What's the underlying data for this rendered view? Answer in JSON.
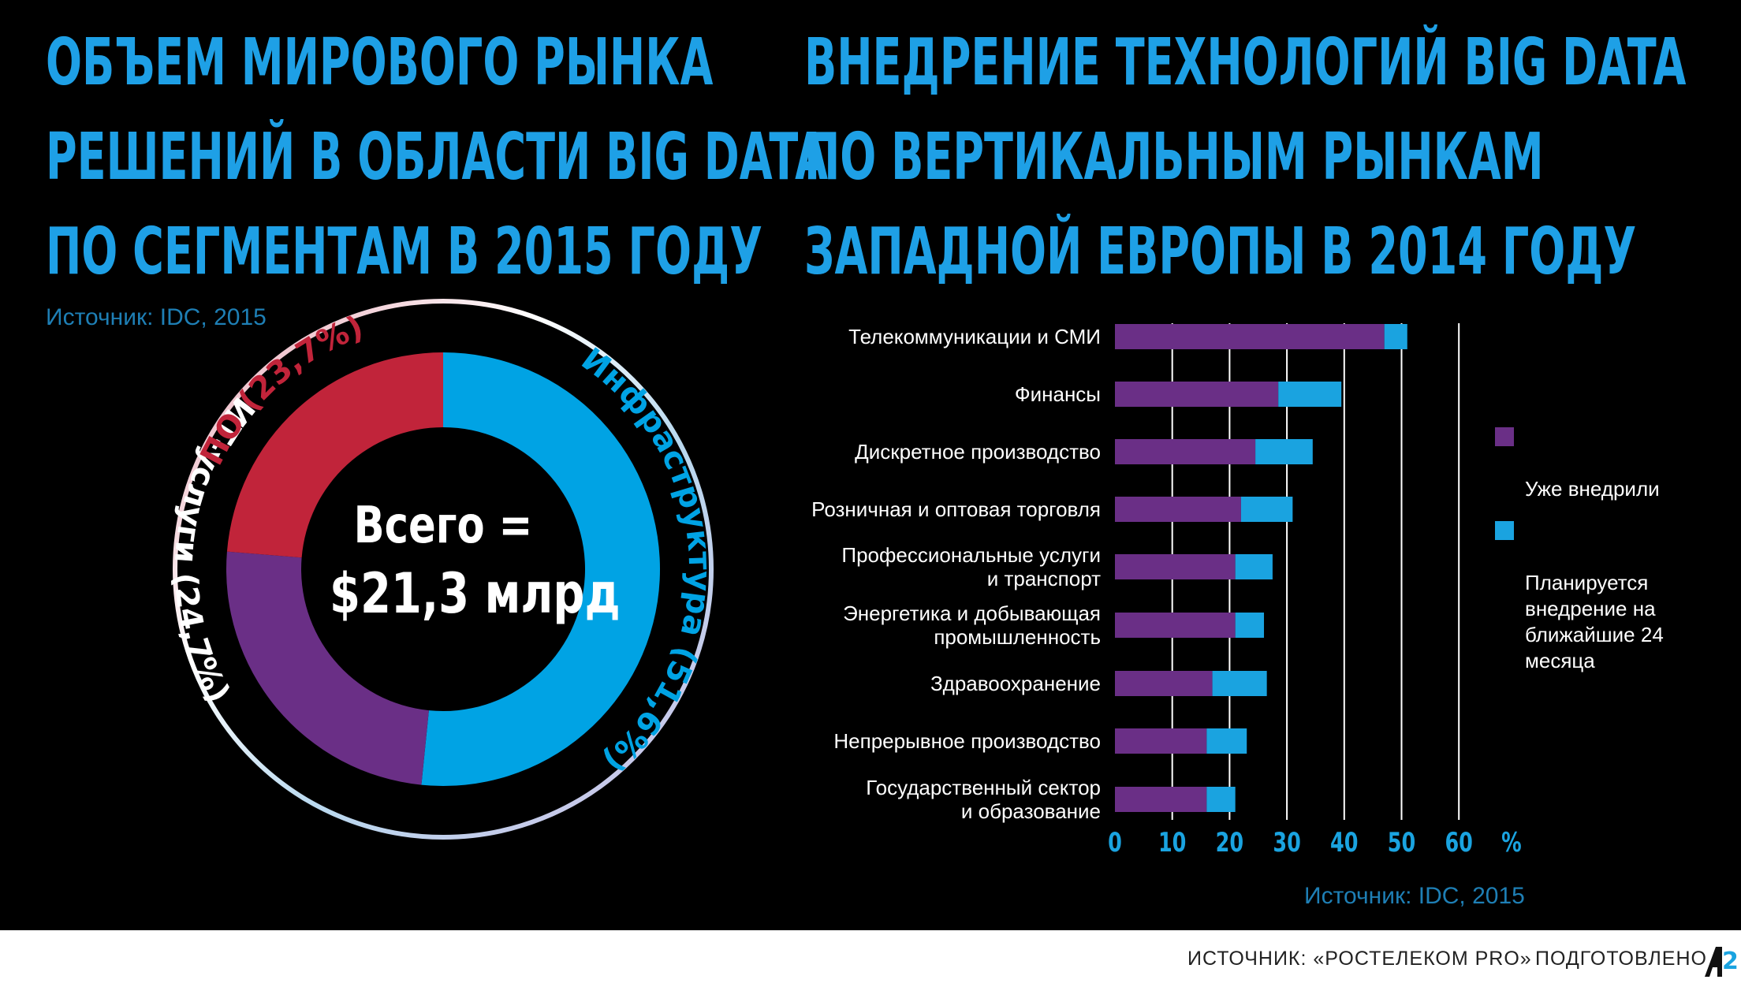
{
  "left_title": [
    "ОБЪЕМ МИРОВОГО РЫНКА",
    "РЕШЕНИЙ В ОБЛАСТИ BIG DATA",
    "ПО СЕГМЕНТАМ В 2015 ГОДУ"
  ],
  "right_title": [
    "ВНЕДРЕНИЕ ТЕХНОЛОГИЙ BIG DATA",
    "ПО ВЕРТИКАЛЬНЫМ РЫНКАМ",
    "ЗАПАДНОЙ ЕВРОПЫ В 2014 ГОДУ"
  ],
  "left_source": "Источник: IDC, 2015",
  "right_source": "Источник: IDC, 2015",
  "donut_center": [
    "Всего =",
    "$21,3 млрд"
  ],
  "footer_source": "ИСТОЧНИК: «РОСТЕЛЕКОМ PRO»",
  "footer_prepared": "ПОДГОТОВЛЕНО",
  "logo_text": "A2",
  "colors": {
    "title_blue": "#1ea0e6",
    "infra": "#00a3e4",
    "it_services": "#6a2f86",
    "software": "#c1243a",
    "implemented": "#6a2f86",
    "planned": "#1aa3e0"
  },
  "chart_data": [
    {
      "type": "pie",
      "title": "ОБЪЕМ МИРОВОГО РЫНКА РЕШЕНИЙ В ОБЛАСТИ BIG DATA ПО СЕГМЕНТАМ В 2015 ГОДУ",
      "total_label": "Всего = $21,3 млрд",
      "slices": [
        {
          "label": "Инфраструктура (51,6%)",
          "value": 51.6,
          "color": "#00a3e4"
        },
        {
          "label": "ИТ-услуги (24,7%)",
          "value": 24.7,
          "color": "#6a2f86"
        },
        {
          "label": "ПО (23,7%)",
          "value": 23.7,
          "color": "#c1243a"
        }
      ]
    },
    {
      "type": "bar",
      "orientation": "horizontal",
      "stacked": true,
      "title": "ВНЕДРЕНИЕ ТЕХНОЛОГИЙ BIG DATA ПО ВЕРТИКАЛЬНЫМ РЫНКАМ ЗАПАДНОЙ ЕВРОПЫ В 2014 ГОДУ",
      "categories": [
        "Телекоммуникации и СМИ",
        "Финансы",
        "Дискретное производство",
        "Розничная и оптовая торговля",
        "Профессиональные услуги\nи транспорт",
        "Энергетика и добывающая\nпромышленность",
        "Здравоохранение",
        "Непрерывное производство",
        "Государственный сектор\nи образование"
      ],
      "series": [
        {
          "name": "Уже внедрили",
          "values": [
            47,
            28.5,
            24.5,
            22,
            21,
            21,
            17,
            16,
            16
          ]
        },
        {
          "name": "Планируется внедрение на ближайшие 24 месяца",
          "values": [
            4,
            11,
            10,
            9,
            6.5,
            5,
            9.5,
            7,
            5
          ]
        }
      ],
      "xticks": [
        "0",
        "10",
        "20",
        "30",
        "40",
        "50",
        "60"
      ],
      "xunit": "%",
      "xlim": [
        0,
        70
      ],
      "legend_position": "right",
      "grid": true
    }
  ]
}
